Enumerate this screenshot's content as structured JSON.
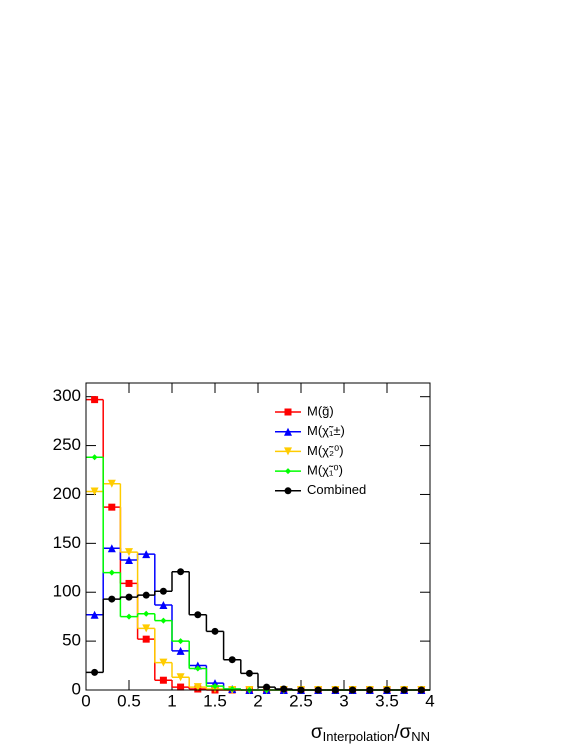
{
  "chart_data": {
    "type": "histogram",
    "xlabel": [
      "σ",
      "Interpolation",
      "/σ",
      "NN"
    ],
    "bins": [
      0,
      0.2,
      0.4,
      0.6,
      0.8,
      1.0,
      1.2,
      1.4,
      1.6,
      1.8,
      2.0,
      2.2,
      2.4,
      2.6,
      2.8,
      3.0,
      3.2,
      3.4,
      3.6,
      3.8,
      4.0
    ],
    "xlim": [
      0,
      4
    ],
    "xticks": [
      0,
      0.5,
      1,
      1.5,
      2,
      2.5,
      3,
      3.5,
      4
    ],
    "ylim": [
      0,
      314
    ],
    "yticks": [
      0,
      50,
      100,
      150,
      200,
      250,
      300
    ],
    "legend": "upper right",
    "series": [
      {
        "name": "M(g̃)",
        "color": "#ff0000",
        "marker": "square",
        "values": [
          297,
          187,
          109,
          52,
          10,
          3,
          1,
          0,
          0,
          0,
          0,
          0,
          0,
          0,
          0,
          0,
          0,
          0,
          0,
          0
        ]
      },
      {
        "name": "M(χ̃₁±)",
        "color": "#0000ff",
        "marker": "triangle-up",
        "values": [
          77,
          145,
          133,
          139,
          87,
          40,
          25,
          7,
          1,
          0,
          0,
          0,
          0,
          0,
          0,
          0,
          0,
          0,
          0,
          0
        ]
      },
      {
        "name": "M(χ̃₂⁰)",
        "color": "#ffcc00",
        "marker": "triangle-down",
        "values": [
          203,
          211,
          141,
          63,
          28,
          13,
          3,
          1,
          0,
          0,
          0,
          0,
          0,
          0,
          0,
          0,
          0,
          0,
          0,
          0
        ]
      },
      {
        "name": "M(χ̃₁⁰)",
        "color": "#00ff00",
        "marker": "diamond",
        "values": [
          238,
          120,
          75,
          78,
          71,
          50,
          22,
          4,
          1,
          0,
          0,
          0,
          0,
          0,
          0,
          0,
          0,
          0,
          0,
          0
        ]
      },
      {
        "name": "Combined",
        "color": "#000000",
        "marker": "circle",
        "values": [
          18,
          93,
          95,
          97,
          101,
          121,
          77,
          60,
          31,
          17,
          3,
          1,
          0,
          0,
          0,
          0,
          0,
          0,
          0,
          0
        ]
      }
    ]
  }
}
